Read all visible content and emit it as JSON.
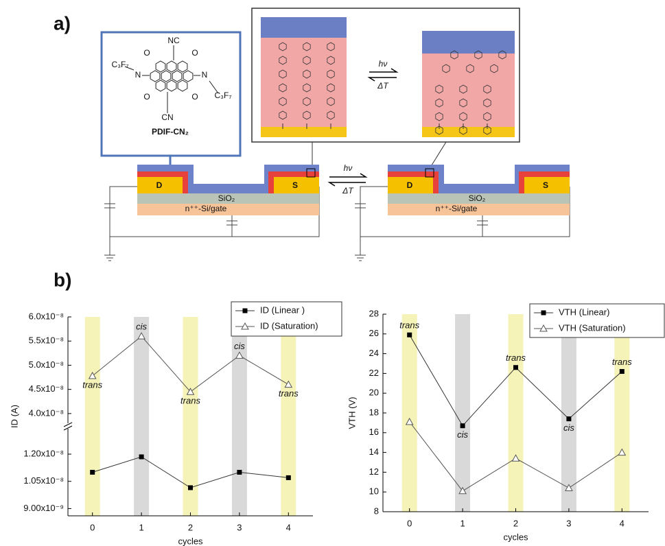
{
  "panel_a": {
    "label": "a)",
    "molecule": {
      "labels": [
        "NC",
        "CN",
        "C₃F₇",
        "C₃F₇",
        "O",
        "O",
        "O",
        "O",
        "N",
        "N"
      ],
      "name": "PDIF-CN₂"
    },
    "inset_arrow": {
      "forward": "hν",
      "reverse": "ΔT"
    },
    "device_arrow": {
      "forward": "hν",
      "reverse": "ΔT"
    },
    "devices": [
      {
        "drain": "D",
        "source": "S",
        "oxide": "SiO₂",
        "gate": "n⁺⁺-Si/gate"
      },
      {
        "drain": "D",
        "source": "S",
        "oxide": "SiO₂",
        "gate": "n⁺⁺-Si/gate"
      }
    ]
  },
  "panel_b": {
    "label": "b)"
  },
  "chart_data": [
    {
      "type": "line",
      "xlabel": "cycles",
      "ylabel": "ID (A)",
      "x": [
        0,
        1,
        2,
        3,
        4
      ],
      "xlim": [
        -0.5,
        4.5
      ],
      "xticks": [
        0,
        1,
        2,
        3,
        4
      ],
      "ylim": [
        [
          8.6e-09,
          1.34e-08
        ],
        [
          3.8e-08,
          6e-08
        ]
      ],
      "yticks": [
        {
          "value": 9e-09,
          "label": "9.00x10⁻⁹"
        },
        {
          "value": 1.05e-08,
          "label": "1.05x10⁻⁸"
        },
        {
          "value": 1.2e-08,
          "label": "1.20x10⁻⁸"
        },
        {
          "value": 4e-08,
          "label": "4.0x10⁻⁸"
        },
        {
          "value": 4.5e-08,
          "label": "4.5x10⁻⁸"
        },
        {
          "value": 5e-08,
          "label": "5.0x10⁻⁸"
        },
        {
          "value": 5.5e-08,
          "label": "5.5x10⁻⁸"
        },
        {
          "value": 6e-08,
          "label": "6.0x10⁻⁸"
        }
      ],
      "band_colors": [
        "#f5f3b8",
        "#d9d9d9",
        "#f5f3b8",
        "#d9d9d9",
        "#f5f3b8"
      ],
      "legend": "top-right",
      "series": [
        {
          "name": "ID (Linear )",
          "color": "#333333",
          "marker": "square",
          "values": [
            1.1e-08,
            1.185e-08,
            1.015e-08,
            1.1e-08,
            1.07e-08
          ]
        },
        {
          "name": "ID (Saturation)",
          "color": "#555555",
          "marker": "triangle",
          "values": [
            4.78e-08,
            5.6e-08,
            4.45e-08,
            5.2e-08,
            4.6e-08
          ],
          "point_labels": [
            "trans",
            "cis",
            "trans",
            "cis",
            "trans"
          ]
        }
      ]
    },
    {
      "type": "line",
      "xlabel": "cycles",
      "ylabel": "VTH (V)",
      "x": [
        0,
        1,
        2,
        3,
        4
      ],
      "xlim": [
        -0.5,
        4.5
      ],
      "xticks": [
        0,
        1,
        2,
        3,
        4
      ],
      "ylim": [
        8,
        28
      ],
      "yticks": [
        8,
        10,
        12,
        14,
        16,
        18,
        20,
        22,
        24,
        26,
        28
      ],
      "band_colors": [
        "#f5f3b8",
        "#d9d9d9",
        "#f5f3b8",
        "#d9d9d9",
        "#f5f3b8"
      ],
      "legend": "top-right",
      "series": [
        {
          "name": "VTH (Linear)",
          "color": "#333333",
          "marker": "square",
          "values": [
            25.9,
            16.7,
            22.6,
            17.4,
            22.2
          ],
          "point_labels": [
            "trans",
            "cis",
            "trans",
            "cis",
            "trans"
          ]
        },
        {
          "name": "VTH (Saturation)",
          "color": "#555555",
          "marker": "triangle",
          "values": [
            17.1,
            10.1,
            13.4,
            10.4,
            14.0
          ]
        }
      ]
    }
  ]
}
